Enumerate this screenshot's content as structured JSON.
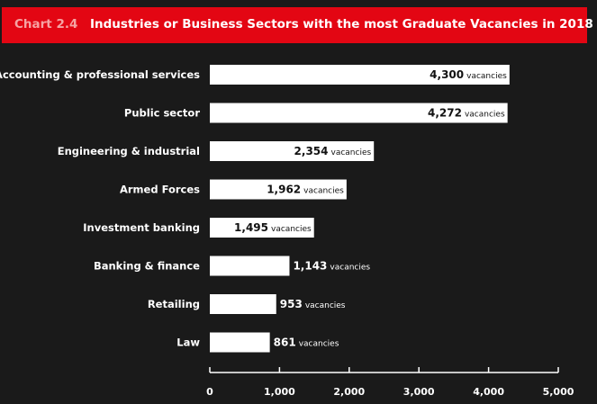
{
  "title": {
    "prefix": "Chart 2.4",
    "text": "Industries or Business Sectors with the most Graduate Vacancies in 2018"
  },
  "colors": {
    "background": "#1a1a1a",
    "title_bar": "#e30613",
    "bars": "#ffffff"
  },
  "chart_data": {
    "type": "bar",
    "orientation": "horizontal",
    "title": "Industries or Business Sectors with the most Graduate Vacancies in 2018",
    "categories": [
      "Accounting & professional services",
      "Public sector",
      "Engineering & industrial",
      "Armed Forces",
      "Investment banking",
      "Banking & finance",
      "Retailing",
      "Law"
    ],
    "values": [
      4300,
      4272,
      2354,
      1962,
      1495,
      1143,
      953,
      861
    ],
    "value_labels": [
      "4,300",
      "4,272",
      "2,354",
      "1,962",
      "1,495",
      "1,143",
      "953",
      "861"
    ],
    "value_unit": "vacancies",
    "xlim": [
      0,
      5000
    ],
    "x_ticks": [
      0,
      1000,
      2000,
      3000,
      4000,
      5000
    ],
    "x_tick_labels": [
      "0",
      "1,000",
      "2,000",
      "3,000",
      "4,000",
      "5,000"
    ],
    "xlabel": "",
    "ylabel": "",
    "grid": false,
    "legend": "none"
  }
}
